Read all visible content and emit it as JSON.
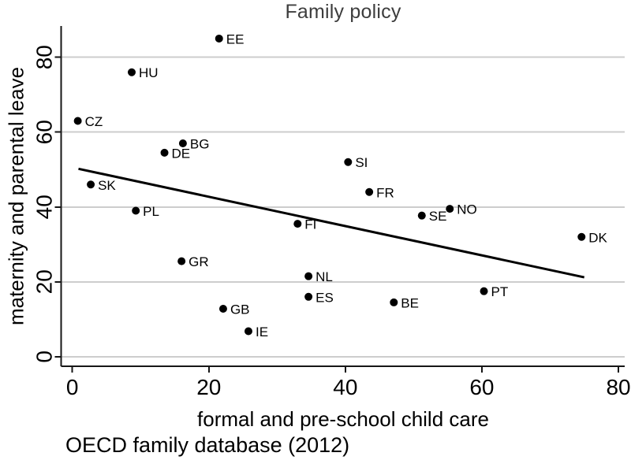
{
  "chart_data": {
    "type": "scatter",
    "title": "Family policy",
    "xlabel": "formal and pre-school child care",
    "ylabel": "maternity and parental leave",
    "source_note": "OECD family database (2012)",
    "xticks": [
      0,
      20,
      40,
      60,
      80
    ],
    "yticks": [
      0,
      20,
      40,
      60,
      80
    ],
    "xlim": [
      -1.6,
      81
    ],
    "ylim": [
      -2.6,
      88.5
    ],
    "grid": "horizontal-gridlines-only",
    "legend": "none",
    "points": [
      {
        "label": "EE",
        "x": 21.5,
        "y": 85
      },
      {
        "label": "HU",
        "x": 8.7,
        "y": 76
      },
      {
        "label": "CZ",
        "x": 0.8,
        "y": 63
      },
      {
        "label": "BG",
        "x": 16.2,
        "y": 57
      },
      {
        "label": "DE",
        "x": 13.5,
        "y": 54.5
      },
      {
        "label": "SI",
        "x": 40.4,
        "y": 52
      },
      {
        "label": "SK",
        "x": 2.7,
        "y": 46
      },
      {
        "label": "FR",
        "x": 43.5,
        "y": 44
      },
      {
        "label": "NO",
        "x": 55.3,
        "y": 39.5
      },
      {
        "label": "PL",
        "x": 9.3,
        "y": 39
      },
      {
        "label": "SE",
        "x": 51.2,
        "y": 37.7
      },
      {
        "label": "FI",
        "x": 33,
        "y": 35.5
      },
      {
        "label": "DK",
        "x": 74.6,
        "y": 32
      },
      {
        "label": "GR",
        "x": 16,
        "y": 25.5
      },
      {
        "label": "NL",
        "x": 34.6,
        "y": 21.5
      },
      {
        "label": "PT",
        "x": 60.3,
        "y": 17.5
      },
      {
        "label": "ES",
        "x": 34.6,
        "y": 16
      },
      {
        "label": "BE",
        "x": 47.1,
        "y": 14.5
      },
      {
        "label": "GB",
        "x": 22.1,
        "y": 12.8
      },
      {
        "label": "IE",
        "x": 25.8,
        "y": 6.8
      }
    ],
    "trendline": {
      "x1": 0.9,
      "y1": 50.2,
      "x2": 75,
      "y2": 21.2
    },
    "colors": {
      "dot": "#000000",
      "trendline": "#000000",
      "gridline": "#cdcdcd",
      "axis": "#161616",
      "tick_label": "#000000",
      "title": "#3d3d3d",
      "background": "#ffffff"
    }
  }
}
